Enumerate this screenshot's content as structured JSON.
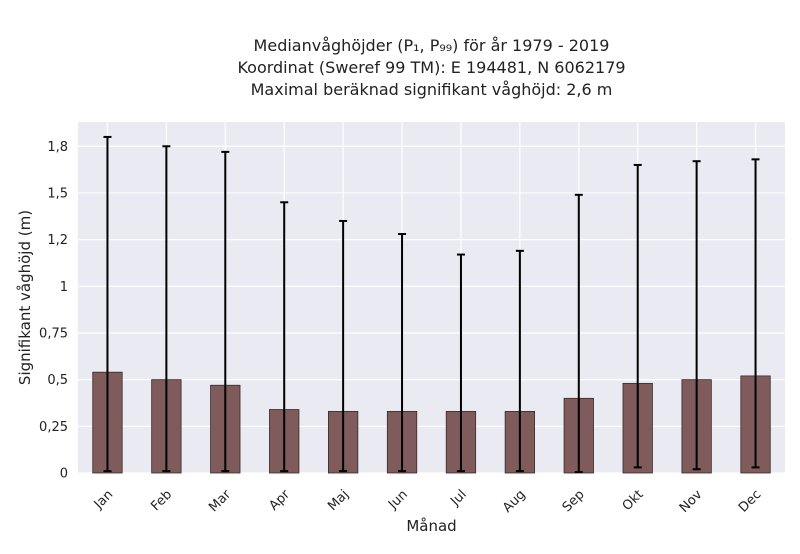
{
  "chart_data": {
    "type": "bar",
    "title_lines": [
      "Medianvåghöjder (P₁, P₉₉) för år 1979 - 2019",
      "Koordinat (Sweref 99 TM): E 194481, N 6062179",
      "Maximal beräknad signifikant våghöjd: 2,6 m"
    ],
    "xlabel": "Månad",
    "ylabel": "Signifikant våghöjd (m)",
    "ylim": [
      0,
      1.88
    ],
    "yticks": [
      0,
      0.25,
      0.5,
      0.75,
      1.0,
      1.25,
      1.5,
      1.75
    ],
    "ytick_labels": [
      "0",
      "0,25",
      "0,5",
      "0,75",
      "1",
      "1,2",
      "1,5",
      "1,8"
    ],
    "categories": [
      "Jan",
      "Feb",
      "Mar",
      "Apr",
      "Maj",
      "Jun",
      "Jul",
      "Aug",
      "Sep",
      "Okt",
      "Nov",
      "Dec"
    ],
    "median": [
      0.54,
      0.5,
      0.47,
      0.34,
      0.33,
      0.33,
      0.33,
      0.33,
      0.4,
      0.48,
      0.5,
      0.52
    ],
    "p1": [
      0.01,
      0.01,
      0.01,
      0.01,
      0.01,
      0.01,
      0.01,
      0.01,
      0.005,
      0.03,
      0.02,
      0.03
    ],
    "p99": [
      1.8,
      1.75,
      1.72,
      1.45,
      1.35,
      1.28,
      1.17,
      1.19,
      1.49,
      1.65,
      1.67,
      1.68
    ],
    "grid": true,
    "bar_color": "#7f5b5b",
    "errorbar_color": "#000000",
    "plot_background": "#eaeaf2"
  }
}
